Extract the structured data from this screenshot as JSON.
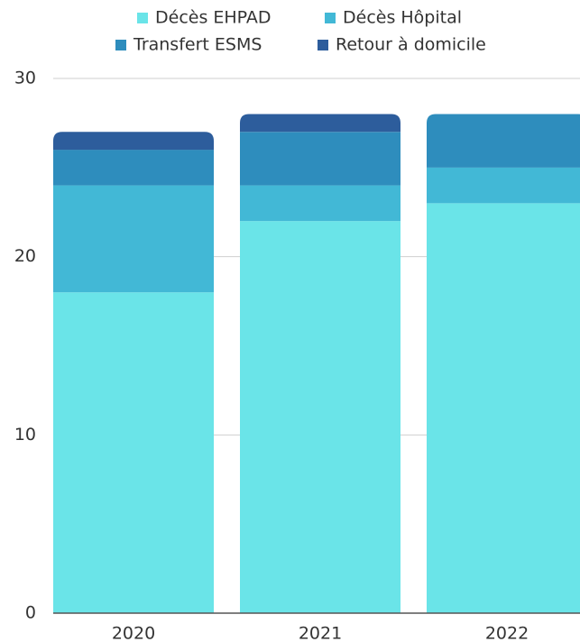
{
  "chart_data": {
    "type": "stacked_bar",
    "categories": [
      "2020",
      "2021",
      "2022"
    ],
    "series": [
      {
        "name": "Décès EHPAD",
        "color": "#6ae4e8",
        "values": [
          18,
          22,
          23
        ]
      },
      {
        "name": "Décès Hôpital",
        "color": "#42b8d6",
        "values": [
          6,
          2,
          2
        ]
      },
      {
        "name": "Transfert ESMS",
        "color": "#2e8dbd",
        "values": [
          2,
          3,
          3
        ]
      },
      {
        "name": "Retour à domicile",
        "color": "#2d5d9c",
        "values": [
          1,
          1,
          0
        ]
      }
    ],
    "ylim": [
      0,
      30
    ],
    "yticks": [
      0,
      10,
      20,
      30
    ],
    "grid": true,
    "legend": "top"
  }
}
